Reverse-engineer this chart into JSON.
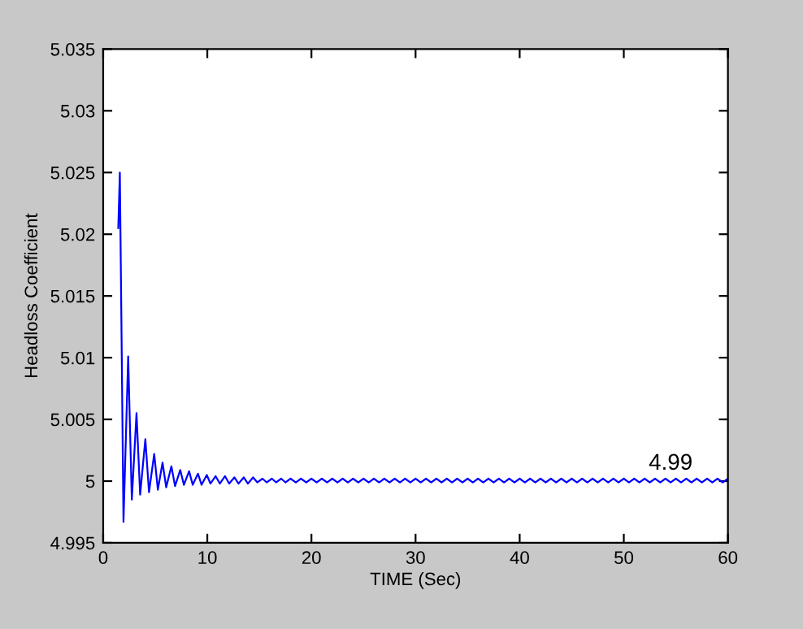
{
  "chart_data": {
    "type": "line",
    "xlabel": "TIME (Sec)",
    "ylabel": "Headloss Coefficient",
    "x": [
      1.45,
      1.6,
      1.95,
      2.4,
      2.75,
      3.2,
      3.55,
      4.05,
      4.4,
      4.9,
      5.25,
      5.7,
      6.05,
      6.55,
      6.9,
      7.4,
      7.75,
      8.25,
      8.6,
      9.1,
      9.45,
      9.95,
      10.3,
      10.8,
      11.2,
      11.7,
      12.1,
      12.6,
      13.0,
      13.5,
      13.9,
      14.4,
      14.8,
      15.3,
      15.7,
      16.2,
      16.6,
      17.1,
      17.5,
      18.0,
      18.5,
      19,
      19.5,
      20,
      20.5,
      21,
      21.5,
      22,
      22.5,
      23,
      23.5,
      24,
      24.5,
      25,
      25.5,
      26,
      26.5,
      27,
      27.5,
      28,
      28.5,
      29,
      29.5,
      30,
      30.5,
      31,
      31.5,
      32,
      32.5,
      33,
      33.5,
      34,
      34.5,
      35,
      35.5,
      36,
      36.5,
      37,
      37.5,
      38,
      38.5,
      39,
      39.5,
      40,
      40.5,
      41,
      41.5,
      42,
      42.5,
      43,
      43.5,
      44,
      44.5,
      45,
      45.5,
      46,
      46.5,
      47,
      47.5,
      48,
      48.5,
      49,
      49.5,
      50,
      50.5,
      51,
      51.5,
      52,
      52.5,
      53,
      53.5,
      54,
      54.5,
      55,
      55.5,
      56,
      56.5,
      57,
      57.5,
      58,
      58.5,
      59,
      59.5,
      60
    ],
    "series": [
      {
        "color": "#0000ff",
        "values": [
          5.0205,
          5.025,
          4.9967,
          5.0101,
          4.9985,
          5.0055,
          4.9989,
          5.0034,
          4.9991,
          5.0022,
          4.9993,
          5.0015,
          4.9995,
          5.0012,
          4.9996,
          5.0009,
          4.9997,
          5.0008,
          4.9997,
          5.0006,
          4.9997,
          5.0005,
          4.9998,
          5.0004,
          4.9998,
          5.0004,
          4.9998,
          5.0003,
          4.9998,
          5.0003,
          4.9998,
          5.0003,
          4.9999,
          5.0002,
          4.9999,
          5.0002,
          4.9999,
          5.0002,
          4.9999,
          5.0002,
          4.9999,
          5.0002,
          4.9999,
          5.0002,
          4.9999,
          5.0002,
          4.9999,
          5.0002,
          4.9999,
          5.0002,
          4.9999,
          5.0002,
          4.9999,
          5.0002,
          4.9999,
          5.0002,
          4.9999,
          5.0002,
          4.9999,
          5.0002,
          4.9999,
          5.0002,
          4.9999,
          5.0002,
          4.9999,
          5.0002,
          4.9999,
          5.0002,
          4.9999,
          5.0002,
          4.9999,
          5.0002,
          4.9999,
          5.0002,
          4.9999,
          5.0002,
          4.9999,
          5.0002,
          4.9999,
          5.0002,
          4.9999,
          5.0002,
          4.9999,
          5.0002,
          4.9999,
          5.0002,
          4.9999,
          5.0002,
          4.9999,
          5.0002,
          4.9999,
          5.0002,
          4.9999,
          5.0002,
          4.9999,
          5.0002,
          4.9999,
          5.0002,
          4.9999,
          5.0002,
          4.9999,
          5.0002,
          4.9999,
          5.0002,
          4.9999,
          5.0002,
          4.9999,
          5.0002,
          4.9999,
          5.0002,
          4.9999,
          5.0002,
          4.9999,
          5.0002,
          4.9999,
          5.0002,
          4.9999,
          5.0002,
          4.9999,
          5.0002,
          4.9999,
          5.0002,
          4.9999,
          5.0002
        ]
      }
    ],
    "xlim": [
      0,
      60
    ],
    "xticks": [
      0,
      10,
      20,
      30,
      40,
      50,
      60
    ],
    "ylim": [
      4.995,
      5.035
    ],
    "yticks": [
      4.995,
      5,
      5.005,
      5.01,
      5.015,
      5.02,
      5.025,
      5.03,
      5.035
    ],
    "annotations": [
      {
        "text": "4.99",
        "x": 54.5,
        "y": 5.0
      }
    ],
    "grid": false,
    "marker": "none",
    "line_style": "solid"
  }
}
